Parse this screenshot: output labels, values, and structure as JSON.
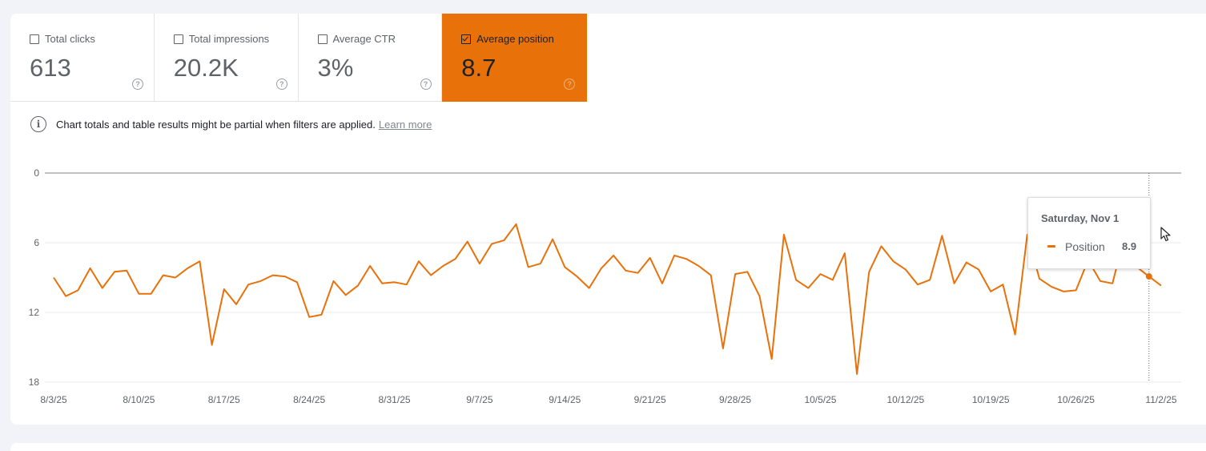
{
  "metrics": [
    {
      "label": "Total clicks",
      "value": "613",
      "checked": false
    },
    {
      "label": "Total impressions",
      "value": "20.2K",
      "checked": false
    },
    {
      "label": "Average CTR",
      "value": "3%",
      "checked": false
    },
    {
      "label": "Average position",
      "value": "8.7",
      "checked": true
    }
  ],
  "help_glyph": "?",
  "notice": {
    "info_glyph": "i",
    "text": "Chart totals and table results might be partial when filters are applied.",
    "link": "Learn more"
  },
  "colors": {
    "accent": "#e8710a",
    "text_secondary": "#5f6368"
  },
  "tooltip": {
    "date": "Saturday, Nov 1",
    "series": "Position",
    "value": "8.9"
  },
  "chart_data": {
    "type": "line",
    "y_inverted": true,
    "ylim": [
      0,
      18
    ],
    "y_ticks": [
      0,
      6,
      12,
      18
    ],
    "x_tick_labels": [
      "8/3/25",
      "8/10/25",
      "8/17/25",
      "8/24/25",
      "8/31/25",
      "9/7/25",
      "9/14/25",
      "9/21/25",
      "9/28/25",
      "10/5/25",
      "10/12/25",
      "10/19/25",
      "10/26/25",
      "11/2/25"
    ],
    "x_start": "8/3/25",
    "x_end": "11/2/25",
    "grid": true,
    "hover_date": "11/1/25",
    "series": [
      {
        "name": "Position",
        "color": "#e8710a",
        "values": [
          9.0,
          10.6,
          10.1,
          8.2,
          9.9,
          8.5,
          8.4,
          10.4,
          10.4,
          8.8,
          9.0,
          8.2,
          7.6,
          14.8,
          10.0,
          11.3,
          9.6,
          9.3,
          8.8,
          8.9,
          9.4,
          12.4,
          12.2,
          9.3,
          10.5,
          9.7,
          8.0,
          9.5,
          9.4,
          9.6,
          7.6,
          8.8,
          8.0,
          7.4,
          5.9,
          7.8,
          6.1,
          5.8,
          4.4,
          8.1,
          7.8,
          5.7,
          8.1,
          8.9,
          9.9,
          8.2,
          7.1,
          8.4,
          8.6,
          7.3,
          9.5,
          7.1,
          7.4,
          8.0,
          8.8,
          15.1,
          8.7,
          8.5,
          10.6,
          16.0,
          5.3,
          9.2,
          9.9,
          8.7,
          9.2,
          6.9,
          17.3,
          8.5,
          6.3,
          7.6,
          8.3,
          9.6,
          9.2,
          5.4,
          9.5,
          7.7,
          8.3,
          10.2,
          9.6,
          13.9,
          5.3,
          9.1,
          9.8,
          10.2,
          10.1,
          7.5,
          9.3,
          9.5,
          5.4,
          8.1,
          8.9,
          9.7
        ]
      }
    ]
  }
}
